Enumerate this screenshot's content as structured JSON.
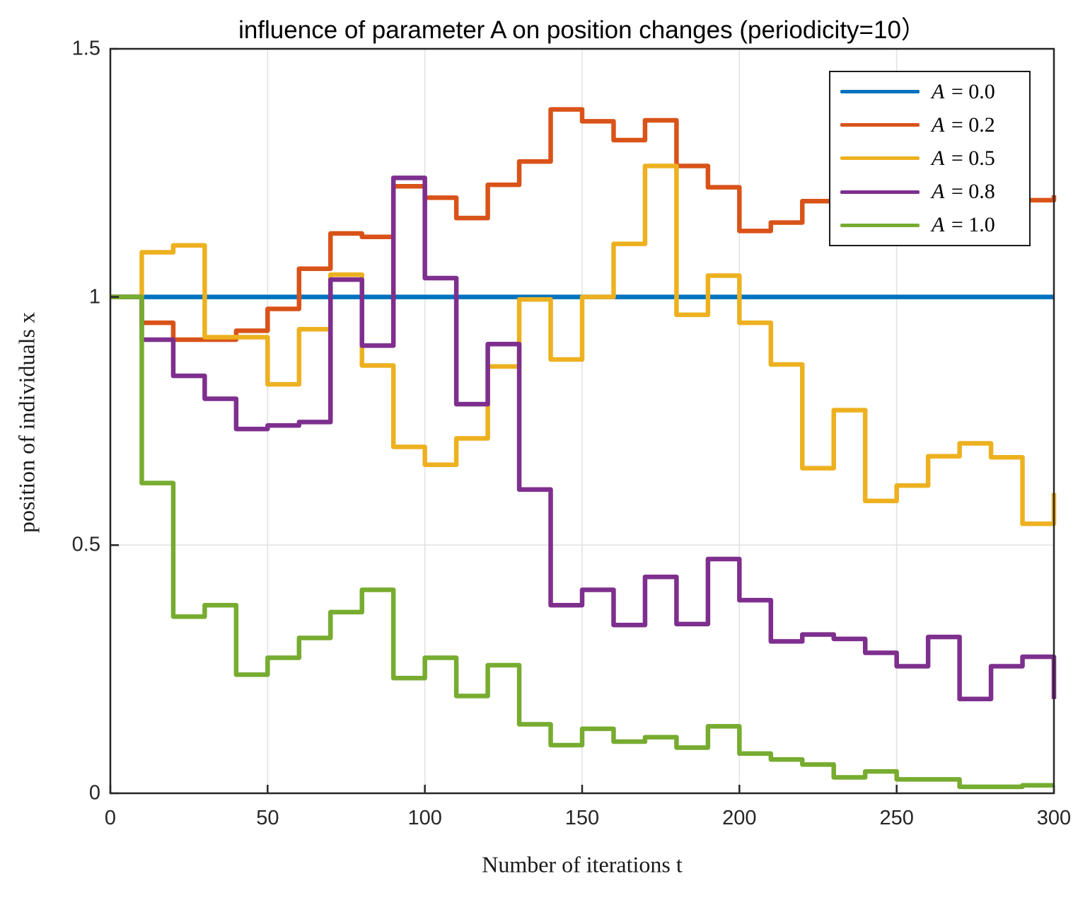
{
  "chart_data": {
    "type": "line",
    "subtype": "step-after",
    "title": "influence of parameter A on position changes (periodicity=10）",
    "xlabel": "Number of iterations t",
    "ylabel": "position of individuals x",
    "xlim": [
      0,
      300
    ],
    "ylim": [
      0,
      1.5
    ],
    "grid": true,
    "legend_position": "top-right",
    "x_start": 0,
    "x_step": 10,
    "xticks": [
      0,
      50,
      100,
      150,
      200,
      250,
      300
    ],
    "xtick_labels": [
      "0",
      "50",
      "100",
      "150",
      "200",
      "250",
      "300"
    ],
    "yticks": [
      0,
      0.5,
      1,
      1.5
    ],
    "ytick_labels": [
      "0",
      "0.5",
      "1",
      "1.5"
    ],
    "series": [
      {
        "name": "A = 0.0",
        "var": "A",
        "value": "0.0",
        "color": "#0072BD",
        "values": [
          1.0,
          1.0,
          1.0,
          1.0,
          1.0,
          1.0,
          1.0,
          1.0,
          1.0,
          1.0,
          1.0,
          1.0,
          1.0,
          1.0,
          1.0,
          1.0,
          1.0,
          1.0,
          1.0,
          1.0,
          1.0,
          1.0,
          1.0,
          1.0,
          1.0,
          1.0,
          1.0,
          1.0,
          1.0,
          1.0,
          1.0
        ]
      },
      {
        "name": "A = 0.2",
        "var": "A",
        "value": "0.2",
        "color": "#D95319",
        "values": [
          1.0,
          0.948,
          0.914,
          0.914,
          0.932,
          0.976,
          1.057,
          1.128,
          1.121,
          1.223,
          1.2,
          1.159,
          1.226,
          1.273,
          1.378,
          1.354,
          1.316,
          1.356,
          1.264,
          1.221,
          1.133,
          1.15,
          1.193,
          1.19,
          1.19,
          1.19,
          1.19,
          1.19,
          1.19,
          1.195,
          1.205
        ]
      },
      {
        "name": "A = 0.5",
        "var": "A",
        "value": "0.5",
        "color": "#EDB120",
        "values": [
          1.0,
          1.09,
          1.104,
          0.919,
          0.919,
          0.824,
          0.935,
          1.045,
          0.862,
          0.698,
          0.662,
          0.715,
          0.86,
          0.995,
          0.874,
          1.0,
          1.107,
          1.264,
          0.964,
          1.043,
          0.948,
          0.864,
          0.655,
          0.772,
          0.589,
          0.62,
          0.679,
          0.705,
          0.677,
          0.543,
          0.605
        ]
      },
      {
        "name": "A = 0.8",
        "var": "A",
        "value": "0.8",
        "color": "#7E2F8E",
        "values": [
          1.0,
          0.914,
          0.841,
          0.795,
          0.734,
          0.741,
          0.748,
          1.035,
          0.902,
          1.24,
          1.038,
          0.784,
          0.905,
          0.612,
          0.379,
          0.41,
          0.339,
          0.436,
          0.341,
          0.472,
          0.389,
          0.306,
          0.32,
          0.311,
          0.283,
          0.256,
          0.315,
          0.19,
          0.256,
          0.275,
          0.19
        ]
      },
      {
        "name": "A = 1.0",
        "var": "A",
        "value": "1.0",
        "color": "#77AC30",
        "values": [
          1.0,
          0.625,
          0.356,
          0.379,
          0.239,
          0.273,
          0.313,
          0.365,
          0.41,
          0.232,
          0.273,
          0.196,
          0.258,
          0.139,
          0.097,
          0.13,
          0.104,
          0.113,
          0.092,
          0.135,
          0.08,
          0.068,
          0.058,
          0.032,
          0.044,
          0.028,
          0.028,
          0.013,
          0.013,
          0.016,
          0.016
        ]
      }
    ],
    "style": {
      "line_width": 6.5,
      "grid_color": "#e2e2e2",
      "box_color": "#262626",
      "tick_length": 12,
      "background": "#ffffff"
    }
  }
}
